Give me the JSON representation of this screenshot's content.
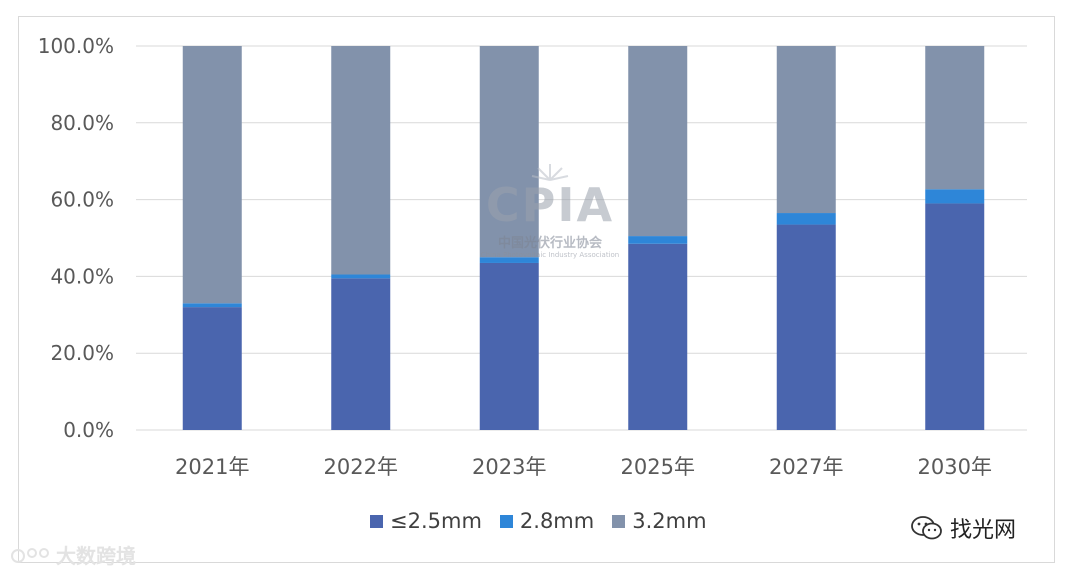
{
  "chart_data": {
    "type": "bar",
    "stacked": true,
    "categories": [
      "2021年",
      "2022年",
      "2023年",
      "2025年",
      "2027年",
      "2030年"
    ],
    "series": [
      {
        "name": "≤2.5mm",
        "color": "#4a65ae",
        "values": [
          32,
          39.5,
          43.5,
          48.5,
          53.5,
          59
        ]
      },
      {
        "name": "2.8mm",
        "color": "#2e86d8",
        "values": [
          1,
          1,
          1.5,
          2,
          3,
          3.7
        ]
      },
      {
        "name": "3.2mm",
        "color": "#8292ab",
        "values": [
          67,
          59.5,
          55,
          49.5,
          43.5,
          37.3
        ]
      }
    ],
    "yticks": [
      "0.0%",
      "20.0%",
      "40.0%",
      "60.0%",
      "80.0%",
      "100.0%"
    ],
    "ylim": [
      0,
      100
    ],
    "grid": true,
    "legend": "bottom"
  },
  "watermarks": {
    "center_logo": "CPIA",
    "center_cn": "中国光伏行业协会",
    "center_en": "China Photovoltaic Industry Association",
    "bottom_left": "大数跨境",
    "bottom_right": "找光网"
  }
}
